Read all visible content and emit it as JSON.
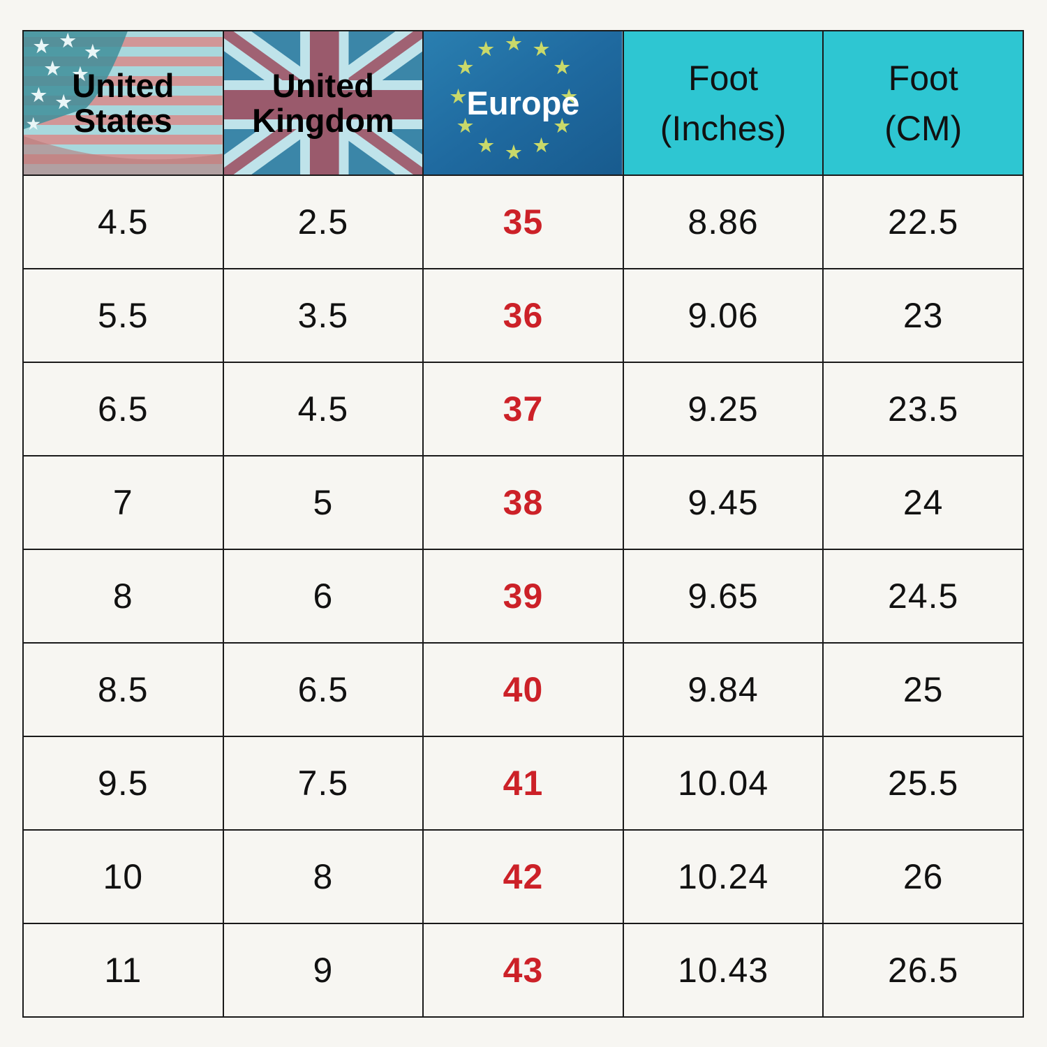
{
  "headers": {
    "us": {
      "line1": "United",
      "line2": "States"
    },
    "uk": {
      "line1": "United",
      "line2": "Kingdom"
    },
    "eu": {
      "line1": "Europe"
    },
    "inches": {
      "line1": "Foot",
      "line2": "(Inches)"
    },
    "cm": {
      "line1": "Foot",
      "line2": "(CM)"
    }
  },
  "flags": [
    "us-flag",
    "uk-flag",
    "eu-flag"
  ],
  "colors": {
    "header_teal": "#2ec6d2",
    "europe_value": "#cc2128",
    "background": "#f7f6f2"
  },
  "rows": [
    {
      "us": "4.5",
      "uk": "2.5",
      "eu": "35",
      "inches": "8.86",
      "cm": "22.5"
    },
    {
      "us": "5.5",
      "uk": "3.5",
      "eu": "36",
      "inches": "9.06",
      "cm": "23"
    },
    {
      "us": "6.5",
      "uk": "4.5",
      "eu": "37",
      "inches": "9.25",
      "cm": "23.5"
    },
    {
      "us": "7",
      "uk": "5",
      "eu": "38",
      "inches": "9.45",
      "cm": "24"
    },
    {
      "us": "8",
      "uk": "6",
      "eu": "39",
      "inches": "9.65",
      "cm": "24.5"
    },
    {
      "us": "8.5",
      "uk": "6.5",
      "eu": "40",
      "inches": "9.84",
      "cm": "25"
    },
    {
      "us": "9.5",
      "uk": "7.5",
      "eu": "41",
      "inches": "10.04",
      "cm": "25.5"
    },
    {
      "us": "10",
      "uk": "8",
      "eu": "42",
      "inches": "10.24",
      "cm": "26"
    },
    {
      "us": "11",
      "uk": "9",
      "eu": "43",
      "inches": "10.43",
      "cm": "26.5"
    }
  ]
}
